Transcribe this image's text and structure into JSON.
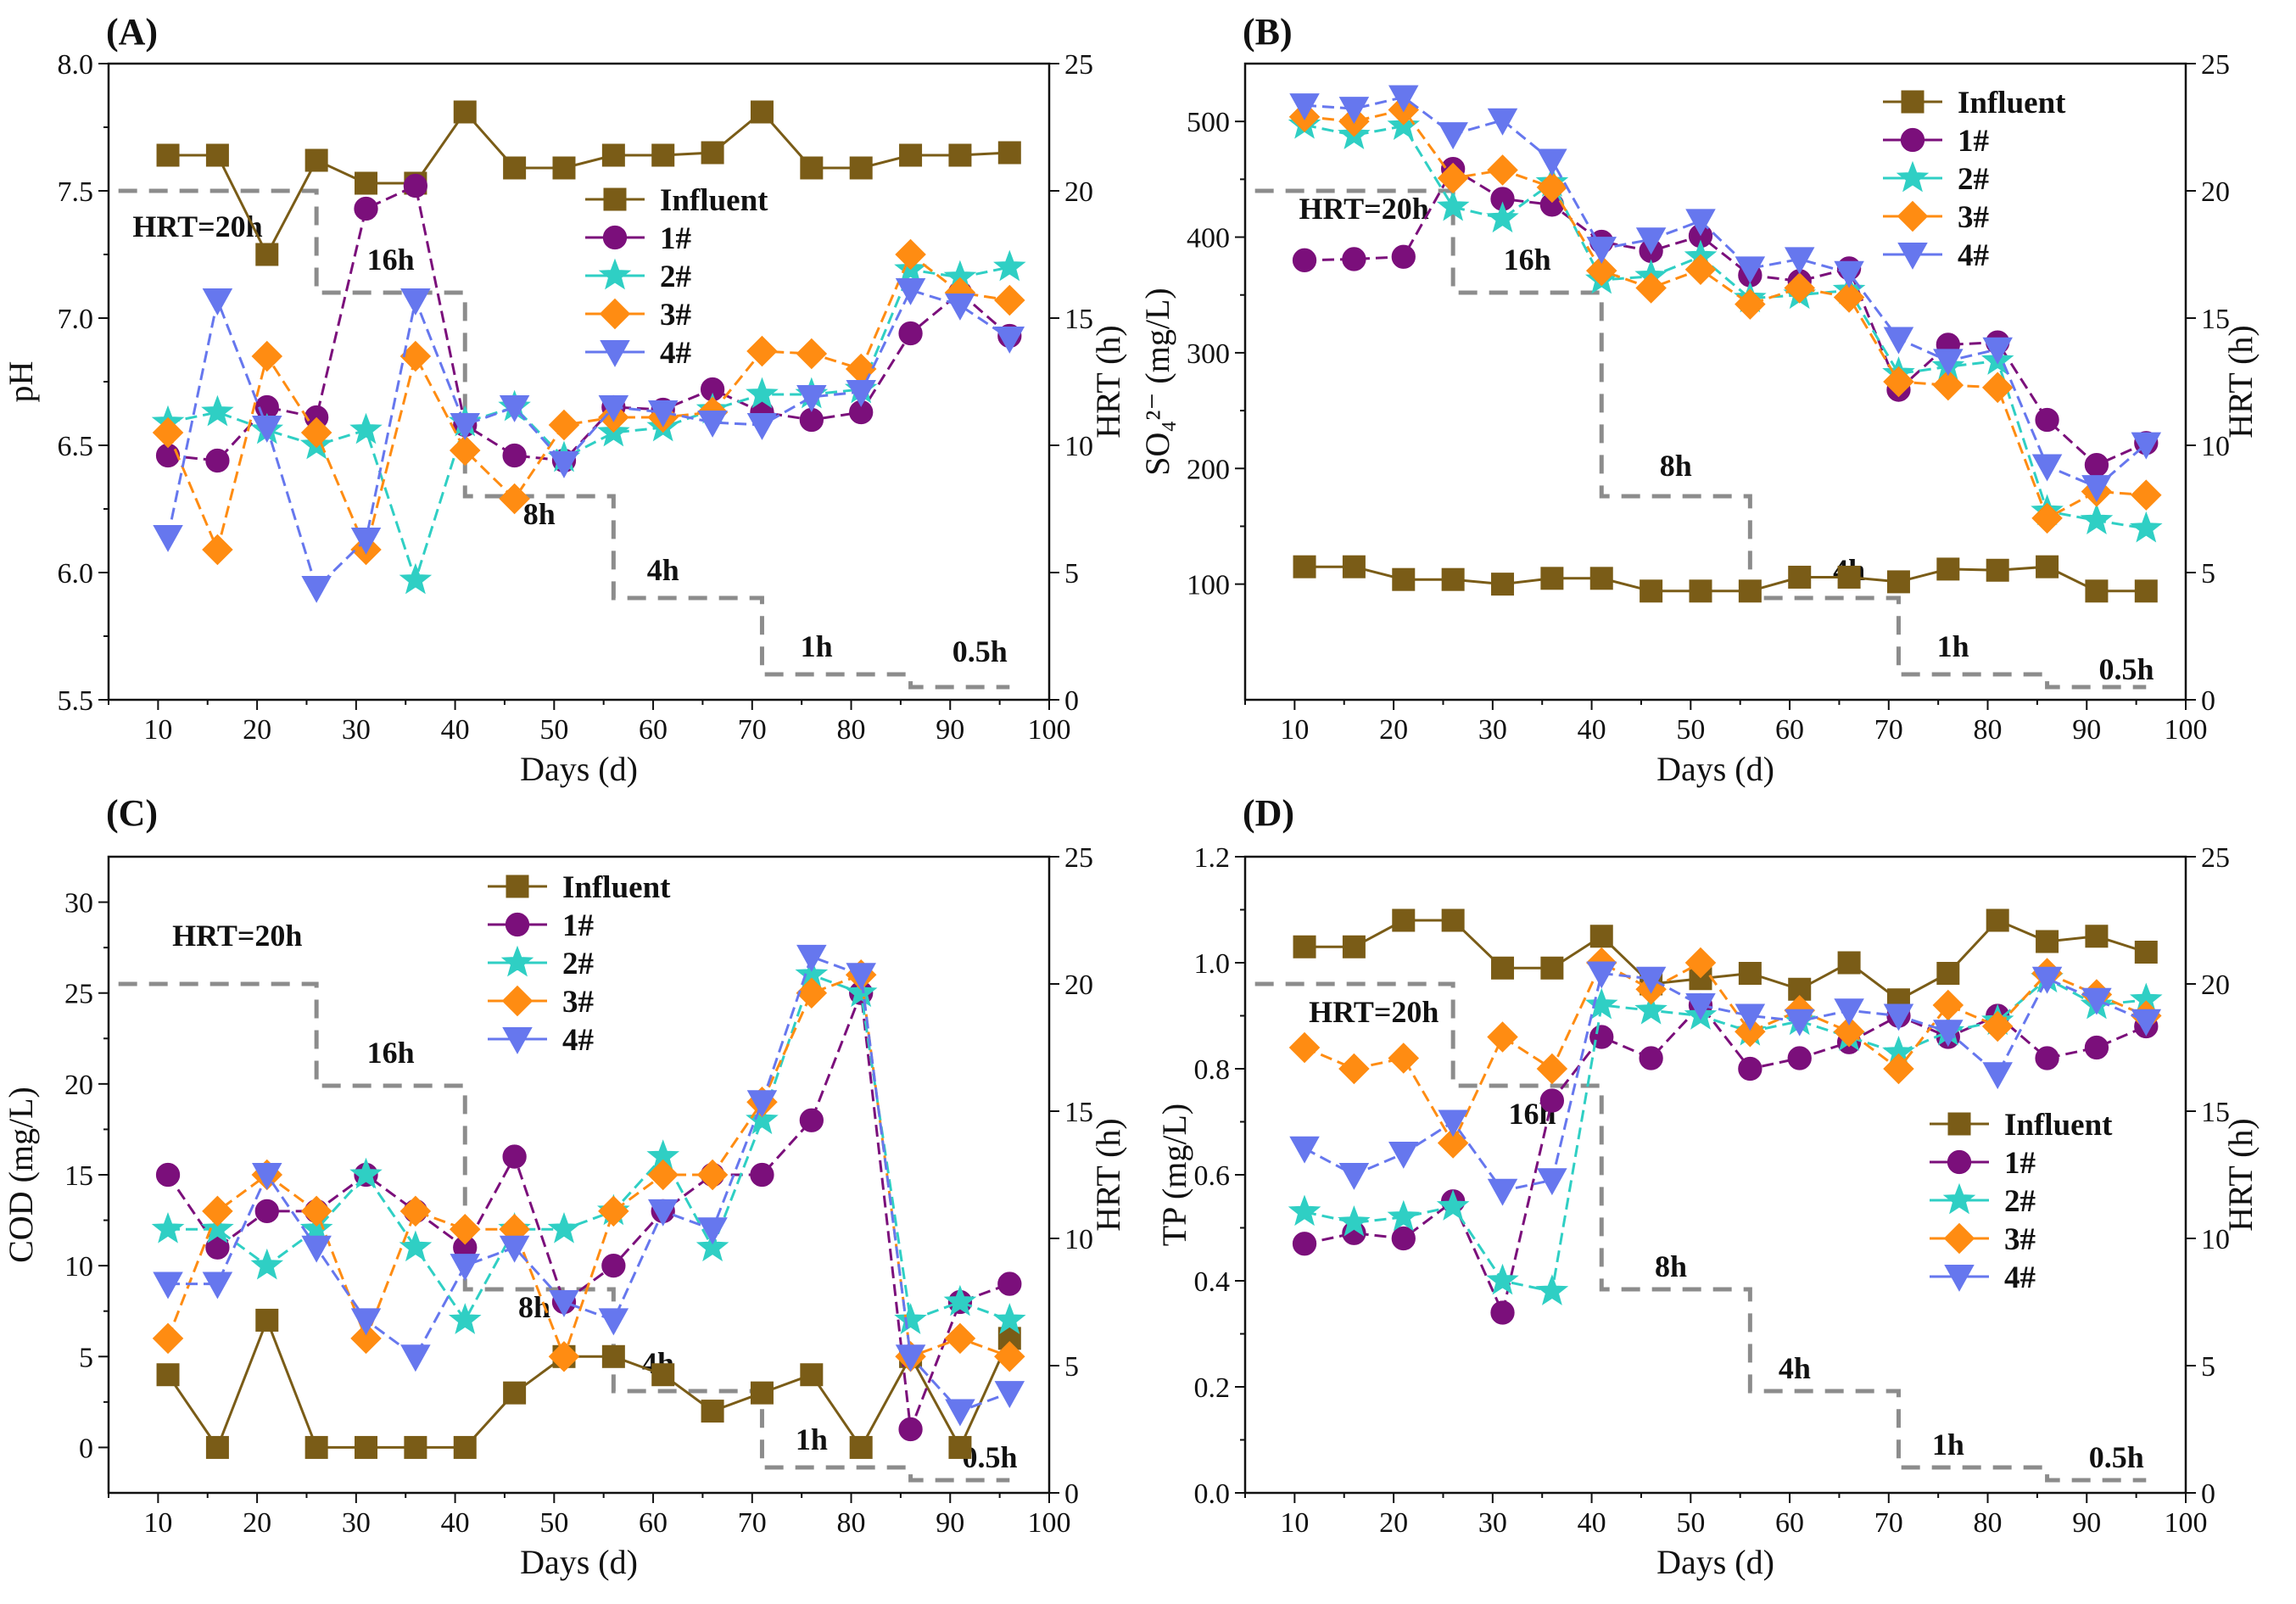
{
  "chart_data": [
    {
      "type": "line",
      "panel": "(A)",
      "xlabel": "Days (d)",
      "ylabel": "pH",
      "y2label": "HRT (h)",
      "xlim": [
        5,
        100
      ],
      "xticks": [
        10,
        20,
        30,
        40,
        50,
        60,
        70,
        80,
        90,
        100
      ],
      "ylim": [
        5.5,
        8.0
      ],
      "yticks": [
        5.5,
        6.0,
        6.5,
        7.0,
        7.5,
        8.0
      ],
      "ytick_labels": [
        "5.5",
        "6.0",
        "6.5",
        "7.0",
        "7.5",
        "8.0"
      ],
      "y2lim": [
        0,
        25
      ],
      "y2ticks": [
        0,
        5,
        10,
        15,
        20,
        25
      ],
      "legend_position": "center",
      "x": [
        11,
        16,
        21,
        26,
        31,
        36,
        41,
        46,
        51,
        56,
        61,
        66,
        71,
        76,
        81,
        86,
        91,
        96
      ],
      "series": [
        {
          "name": "Influent",
          "values": [
            7.64,
            7.64,
            7.25,
            7.62,
            7.53,
            7.53,
            7.81,
            7.59,
            7.59,
            7.64,
            7.64,
            7.65,
            7.81,
            7.59,
            7.59,
            7.64,
            7.64,
            7.65
          ]
        },
        {
          "name": "1#",
          "values": [
            6.46,
            6.44,
            6.65,
            6.61,
            7.43,
            7.52,
            6.58,
            6.46,
            6.44,
            6.65,
            6.64,
            6.72,
            6.63,
            6.6,
            6.63,
            6.94,
            7.1,
            6.93
          ]
        },
        {
          "name": "2#",
          "values": [
            6.59,
            6.63,
            6.56,
            6.5,
            6.56,
            5.97,
            6.59,
            6.65,
            6.45,
            6.55,
            6.57,
            6.64,
            6.7,
            6.7,
            6.72,
            7.19,
            7.16,
            7.2
          ]
        },
        {
          "name": "3#",
          "values": [
            6.55,
            6.09,
            6.85,
            6.55,
            6.09,
            6.85,
            6.48,
            6.29,
            6.58,
            6.61,
            6.61,
            6.63,
            6.87,
            6.86,
            6.8,
            7.25,
            7.1,
            7.07
          ]
        },
        {
          "name": "4#",
          "values": [
            6.14,
            7.07,
            6.57,
            5.94,
            6.13,
            7.07,
            6.58,
            6.65,
            6.43,
            6.65,
            6.63,
            6.59,
            6.58,
            6.69,
            6.71,
            7.11,
            7.05,
            6.92
          ]
        }
      ],
      "hrt": {
        "steps": [
          {
            "x0": 6,
            "x1": 26,
            "h": 20
          },
          {
            "x0": 26,
            "x1": 41,
            "h": 16
          },
          {
            "x0": 41,
            "x1": 56,
            "h": 8
          },
          {
            "x0": 56,
            "x1": 71,
            "h": 4
          },
          {
            "x0": 71,
            "x1": 86,
            "h": 1
          },
          {
            "x0": 86,
            "x1": 96,
            "h": 0.5
          }
        ],
        "labels": [
          {
            "text": "HRT=20h",
            "x": 14,
            "h": 18.2
          },
          {
            "text": "16h",
            "x": 33.5,
            "h": 16.9
          },
          {
            "text": "8h",
            "x": 48.5,
            "h": 6.9
          },
          {
            "text": "4h",
            "x": 61,
            "h": 4.7
          },
          {
            "text": "1h",
            "x": 76.5,
            "h": 1.7
          },
          {
            "text": "0.5h",
            "x": 93,
            "h": 1.5
          }
        ]
      }
    },
    {
      "type": "line",
      "panel": "(B)",
      "xlabel": "Days (d)",
      "ylabel": "SO₄²⁻ (mg/L)",
      "y2label": "HRT (h)",
      "xlim": [
        5,
        100
      ],
      "xticks": [
        10,
        20,
        30,
        40,
        50,
        60,
        70,
        80,
        90,
        100
      ],
      "ylim": [
        0,
        550
      ],
      "yticks": [
        100,
        200,
        300,
        400,
        500
      ],
      "ytick_labels": [
        "100",
        "200",
        "300",
        "400",
        "500"
      ],
      "y2lim": [
        0,
        25
      ],
      "y2ticks": [
        0,
        5,
        10,
        15,
        20,
        25
      ],
      "legend_position": "top-right",
      "x": [
        11,
        16,
        21,
        26,
        31,
        36,
        41,
        46,
        51,
        56,
        61,
        66,
        71,
        76,
        81,
        86,
        91,
        96
      ],
      "series": [
        {
          "name": "Influent",
          "values": [
            115,
            115,
            104,
            104,
            100,
            105,
            105,
            94,
            94,
            94,
            106,
            106,
            102,
            113,
            112,
            115,
            94,
            94
          ]
        },
        {
          "name": "1#",
          "values": [
            380,
            381,
            383,
            459,
            433,
            428,
            396,
            388,
            401,
            367,
            362,
            373,
            268,
            307,
            309,
            242,
            203,
            222
          ]
        },
        {
          "name": "2#",
          "values": [
            497,
            488,
            496,
            426,
            416,
            447,
            363,
            366,
            383,
            347,
            350,
            354,
            282,
            288,
            293,
            163,
            155,
            148
          ]
        },
        {
          "name": "3#",
          "values": [
            504,
            500,
            510,
            451,
            458,
            443,
            371,
            356,
            372,
            342,
            356,
            348,
            275,
            272,
            270,
            157,
            180,
            177
          ]
        },
        {
          "name": "4#",
          "values": [
            514,
            511,
            521,
            489,
            501,
            466,
            390,
            398,
            414,
            373,
            381,
            369,
            312,
            293,
            303,
            202,
            184,
            221
          ]
        }
      ],
      "hrt": {
        "steps": [
          {
            "x0": 6,
            "x1": 26,
            "h": 20
          },
          {
            "x0": 26,
            "x1": 41,
            "h": 16
          },
          {
            "x0": 41,
            "x1": 56,
            "h": 8
          },
          {
            "x0": 56,
            "x1": 71,
            "h": 4
          },
          {
            "x0": 71,
            "x1": 86,
            "h": 1
          },
          {
            "x0": 86,
            "x1": 96,
            "h": 0.5
          }
        ],
        "labels": [
          {
            "text": "HRT=20h",
            "x": 17,
            "h": 18.9
          },
          {
            "text": "16h",
            "x": 33.5,
            "h": 16.9
          },
          {
            "text": "8h",
            "x": 48.5,
            "h": 8.8
          },
          {
            "text": "4h",
            "x": 66,
            "h": 4.7
          },
          {
            "text": "1h",
            "x": 76.5,
            "h": 1.7
          },
          {
            "text": "0.5h",
            "x": 94,
            "h": 0.8
          }
        ]
      }
    },
    {
      "type": "line",
      "panel": "(C)",
      "xlabel": "Days (d)",
      "ylabel": "COD (mg/L)",
      "y2label": "HRT (h)",
      "xlim": [
        5,
        100
      ],
      "xticks": [
        10,
        20,
        30,
        40,
        50,
        60,
        70,
        80,
        90,
        100
      ],
      "ylim": [
        -2.5,
        32.5
      ],
      "yticks": [
        0,
        5,
        10,
        15,
        20,
        25,
        30
      ],
      "ytick_labels": [
        "0",
        "5",
        "10",
        "15",
        "20",
        "25",
        "30"
      ],
      "y2lim": [
        0,
        25
      ],
      "y2ticks": [
        0,
        5,
        10,
        15,
        20,
        25
      ],
      "legend_position": "top-center",
      "x": [
        11,
        16,
        21,
        26,
        31,
        36,
        41,
        46,
        51,
        56,
        61,
        66,
        71,
        76,
        81,
        86,
        91,
        96
      ],
      "series": [
        {
          "name": "Influent",
          "values": [
            4,
            0,
            7,
            0,
            0,
            0,
            0,
            3,
            5,
            5,
            4,
            2,
            3,
            4,
            0,
            5,
            0,
            6
          ]
        },
        {
          "name": "1#",
          "values": [
            15,
            11,
            13,
            13,
            15,
            13,
            11,
            16,
            8,
            10,
            13,
            15,
            15,
            18,
            25,
            1,
            8,
            9
          ]
        },
        {
          "name": "2#",
          "values": [
            12,
            12,
            10,
            12,
            15,
            11,
            7,
            12,
            12,
            13,
            16,
            11,
            18,
            26,
            25,
            7,
            8,
            7
          ]
        },
        {
          "name": "3#",
          "values": [
            6,
            13,
            15,
            13,
            6,
            13,
            12,
            12,
            5,
            13,
            15,
            15,
            19,
            25,
            26,
            5,
            6,
            5
          ]
        },
        {
          "name": "4#",
          "values": [
            9,
            9,
            15,
            11,
            7,
            5,
            10,
            11,
            8,
            7,
            13,
            12,
            19,
            27,
            26,
            5,
            2,
            3
          ]
        }
      ],
      "hrt": {
        "steps": [
          {
            "x0": 6,
            "x1": 26,
            "h": 20
          },
          {
            "x0": 26,
            "x1": 41,
            "h": 16
          },
          {
            "x0": 41,
            "x1": 56,
            "h": 8
          },
          {
            "x0": 56,
            "x1": 71,
            "h": 4
          },
          {
            "x0": 71,
            "x1": 86,
            "h": 1
          },
          {
            "x0": 86,
            "x1": 96,
            "h": 0.5
          }
        ],
        "labels": [
          {
            "text": "HRT=20h",
            "x": 18,
            "h": 21.5
          },
          {
            "text": "16h",
            "x": 33.5,
            "h": 16.9
          },
          {
            "text": "8h",
            "x": 48,
            "h": 6.9
          },
          {
            "text": "4h",
            "x": 60.5,
            "h": 4.7
          },
          {
            "text": "1h",
            "x": 76,
            "h": 1.7
          },
          {
            "text": "0.5h",
            "x": 94,
            "h": 1
          }
        ]
      }
    },
    {
      "type": "line",
      "panel": "(D)",
      "xlabel": "Days (d)",
      "ylabel": "TP (mg/L)",
      "y2label": "HRT (h)",
      "xlim": [
        5,
        100
      ],
      "xticks": [
        10,
        20,
        30,
        40,
        50,
        60,
        70,
        80,
        90,
        100
      ],
      "ylim": [
        0,
        1.2
      ],
      "yticks": [
        0,
        0.2,
        0.4,
        0.6,
        0.8,
        1.0,
        1.2
      ],
      "ytick_labels": [
        "0.0",
        "0.2",
        "0.4",
        "0.6",
        "0.8",
        "1.0",
        "1.2"
      ],
      "y2lim": [
        0,
        25
      ],
      "y2ticks": [
        0,
        5,
        10,
        15,
        20,
        25
      ],
      "legend_position": "bottom-right",
      "x": [
        11,
        16,
        21,
        26,
        31,
        36,
        41,
        46,
        51,
        56,
        61,
        66,
        71,
        76,
        81,
        86,
        91,
        96
      ],
      "series": [
        {
          "name": "Influent",
          "values": [
            1.03,
            1.03,
            1.08,
            1.08,
            0.99,
            0.99,
            1.05,
            0.96,
            0.97,
            0.98,
            0.95,
            1.0,
            0.93,
            0.98,
            1.08,
            1.04,
            1.05,
            1.02
          ]
        },
        {
          "name": "1#",
          "values": [
            0.47,
            0.49,
            0.48,
            0.55,
            0.34,
            0.74,
            0.86,
            0.82,
            0.92,
            0.8,
            0.82,
            0.85,
            0.9,
            0.86,
            0.9,
            0.82,
            0.84,
            0.88
          ]
        },
        {
          "name": "2#",
          "values": [
            0.53,
            0.51,
            0.52,
            0.54,
            0.4,
            0.38,
            0.92,
            0.91,
            0.9,
            0.87,
            0.89,
            0.86,
            0.83,
            0.87,
            0.89,
            0.97,
            0.92,
            0.93
          ]
        },
        {
          "name": "3#",
          "values": [
            0.84,
            0.8,
            0.82,
            0.66,
            0.86,
            0.8,
            1.0,
            0.95,
            1.0,
            0.87,
            0.91,
            0.87,
            0.8,
            0.92,
            0.88,
            0.98,
            0.94,
            0.9
          ]
        },
        {
          "name": "4#",
          "values": [
            0.65,
            0.6,
            0.64,
            0.7,
            0.57,
            0.59,
            0.98,
            0.97,
            0.92,
            0.9,
            0.89,
            0.91,
            0.9,
            0.87,
            0.79,
            0.97,
            0.93,
            0.89
          ]
        }
      ],
      "hrt": {
        "steps": [
          {
            "x0": 6,
            "x1": 26,
            "h": 20
          },
          {
            "x0": 26,
            "x1": 41,
            "h": 16
          },
          {
            "x0": 41,
            "x1": 56,
            "h": 8
          },
          {
            "x0": 56,
            "x1": 71,
            "h": 4
          },
          {
            "x0": 71,
            "x1": 86,
            "h": 1
          },
          {
            "x0": 86,
            "x1": 96,
            "h": 0.5
          }
        ],
        "labels": [
          {
            "text": "HRT=20h",
            "x": 18,
            "h": 18.5
          },
          {
            "text": "16h",
            "x": 34,
            "h": 14.5
          },
          {
            "text": "8h",
            "x": 48,
            "h": 8.5
          },
          {
            "text": "4h",
            "x": 60.5,
            "h": 4.5
          },
          {
            "text": "1h",
            "x": 76,
            "h": 1.5
          },
          {
            "text": "0.5h",
            "x": 93,
            "h": 1
          }
        ]
      }
    }
  ],
  "styles": {
    "series": {
      "Influent": {
        "color": "#7a5c17",
        "marker": "square"
      },
      "1#": {
        "color": "#7b0f7b",
        "marker": "circle"
      },
      "2#": {
        "color": "#2fcfc4",
        "marker": "star"
      },
      "3#": {
        "color": "#ff8c12",
        "marker": "diamond"
      },
      "4#": {
        "color": "#6677ee",
        "marker": "triangle-down"
      }
    },
    "hrt_color": "#8c8c8c",
    "axis_color": "#111111"
  }
}
